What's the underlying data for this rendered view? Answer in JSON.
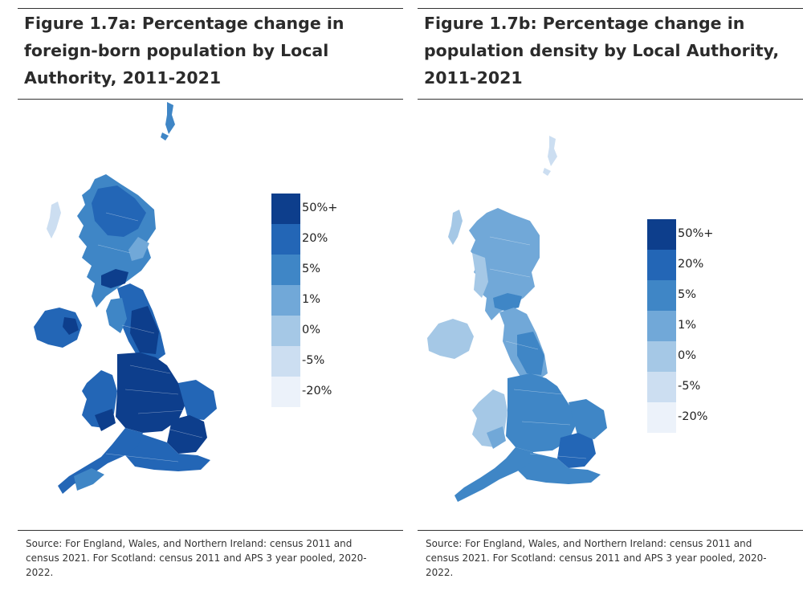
{
  "panels": [
    {
      "title": "Figure 1.7a: Percentage change in foreign-born population by Local Authority, 2011-2021",
      "source": "Source: For England, Wales, and Northern Ireland: census 2011 and census 2021. For Scotland: census 2011 and APS 3 year pooled, 2020-2022.",
      "legend": [
        {
          "label": "50%+",
          "color": "#0d3e8c"
        },
        {
          "label": "20%",
          "color": "#2366b6"
        },
        {
          "label": "5%",
          "color": "#3f86c6"
        },
        {
          "label": "1%",
          "color": "#71a8d8"
        },
        {
          "label": "0%",
          "color": "#a5c8e6"
        },
        {
          "label": "-5%",
          "color": "#ccdef1"
        },
        {
          "label": "-20%",
          "color": "#ecf2fa"
        }
      ]
    },
    {
      "title": "Figure 1.7b: Percentage change in population density by Local Authority, 2011-2021",
      "source": "Source: For England, Wales, and Northern Ireland: census 2011 and census 2021. For Scotland: census 2011 and APS 3 year pooled, 2020-2022.",
      "legend": [
        {
          "label": "50%+",
          "color": "#0d3e8c"
        },
        {
          "label": "20%",
          "color": "#2366b6"
        },
        {
          "label": "5%",
          "color": "#3f86c6"
        },
        {
          "label": "1%",
          "color": "#71a8d8"
        },
        {
          "label": "0%",
          "color": "#a5c8e6"
        },
        {
          "label": "-5%",
          "color": "#ccdef1"
        },
        {
          "label": "-20%",
          "color": "#ecf2fa"
        }
      ]
    }
  ]
}
